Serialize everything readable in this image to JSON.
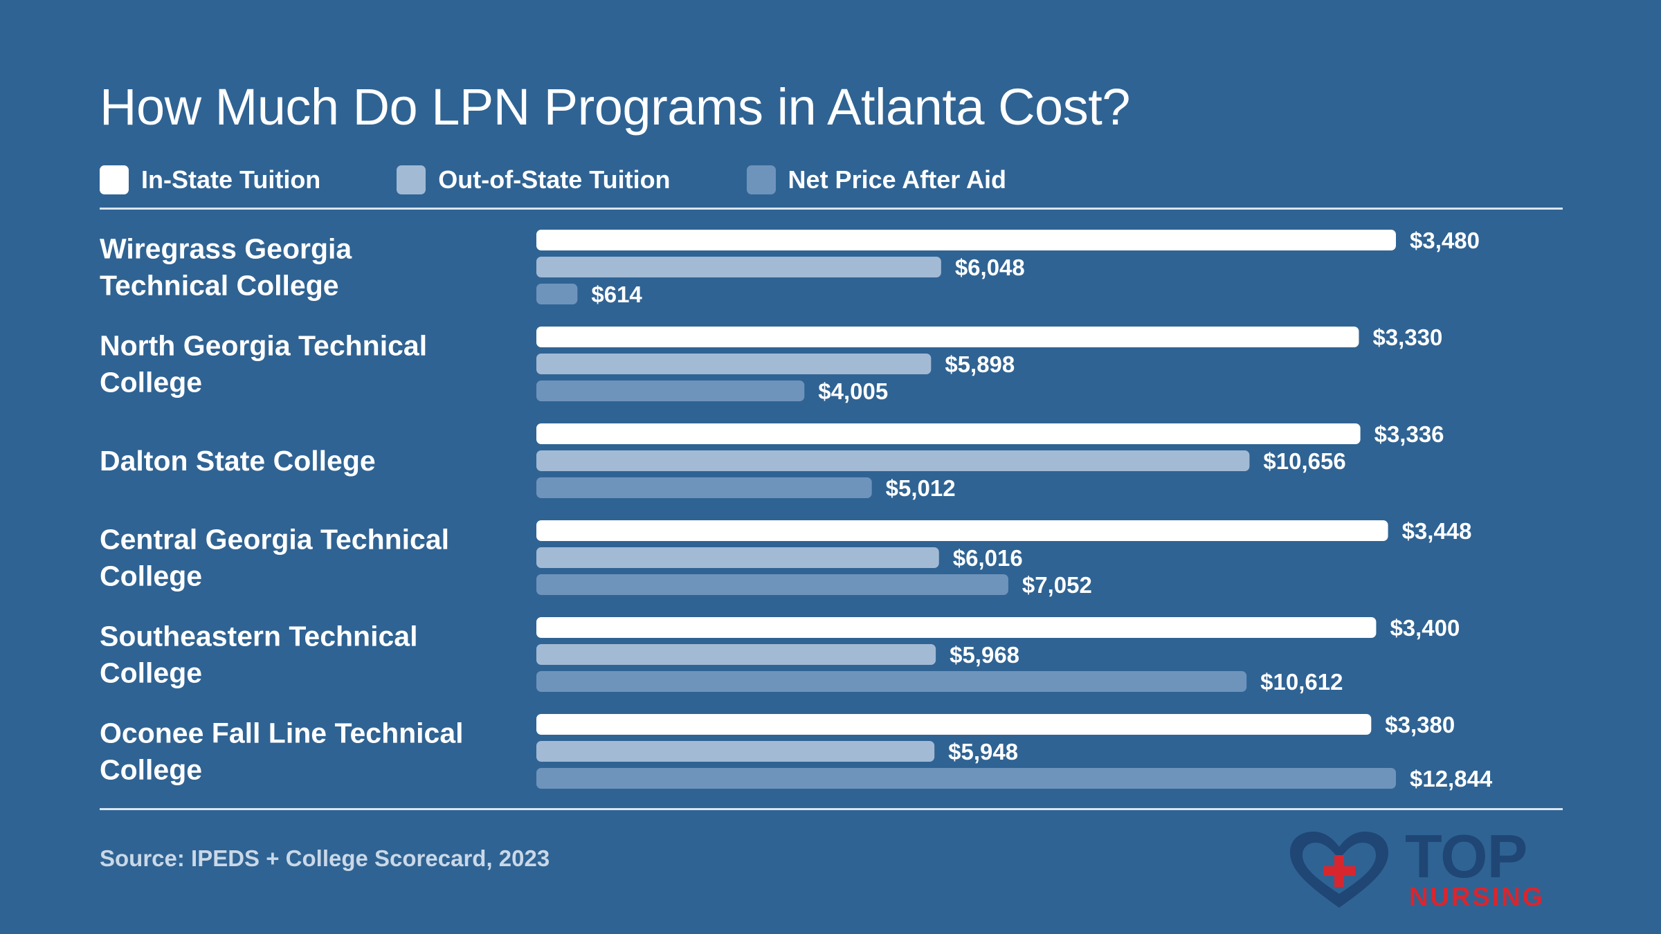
{
  "colors": {
    "background": "#2f6393",
    "in_state": "#ffffff",
    "out_of_state": "#a3bad5",
    "net_price": "#6f94bc",
    "logo_blue": "#1f4674",
    "logo_red": "#d8262f"
  },
  "chart_data": {
    "type": "bar",
    "orientation": "horizontal",
    "title": "How Much Do LPN Programs in Atlanta Cost?",
    "legend_position": "top-left",
    "grid": false,
    "categories": [
      "Wiregrass Georgia Technical College",
      "North Georgia Technical College",
      "Dalton State College",
      "Central Georgia Technical College",
      "Southeastern Technical College",
      "Oconee Fall Line Technical College"
    ],
    "category_lines": [
      [
        "Wiregrass Georgia",
        "Technical College"
      ],
      [
        "North Georgia Technical",
        "College"
      ],
      [
        "Dalton State College"
      ],
      [
        "Central Georgia Technical",
        "College"
      ],
      [
        "Southeastern Technical",
        "College"
      ],
      [
        "Oconee Fall Line Technical",
        "College"
      ]
    ],
    "series": [
      {
        "name": "In-State Tuition",
        "values": [
          3480,
          3330,
          3336,
          3448,
          3400,
          3380
        ],
        "labels": [
          "$3,480",
          "$3,330",
          "$3,336",
          "$3,448",
          "$3,400",
          "$3,380"
        ]
      },
      {
        "name": "Out-of-State Tuition",
        "values": [
          6048,
          5898,
          10656,
          6016,
          5968,
          5948
        ],
        "labels": [
          "$6,048",
          "$5,898",
          "$10,656",
          "$6,016",
          "$5,968",
          "$5,948"
        ]
      },
      {
        "name": "Net Price After Aid",
        "values": [
          614,
          4005,
          5012,
          7052,
          10612,
          12844
        ],
        "labels": [
          "$614",
          "$4,005",
          "$5,012",
          "$7,052",
          "$10,612",
          "$12,844"
        ]
      }
    ]
  },
  "footer": {
    "source": "Source: IPEDS + College Scorecard, 2023"
  },
  "logo": {
    "icon": "heart-cross-icon",
    "line1": "TOP",
    "line2": "NURSING"
  }
}
